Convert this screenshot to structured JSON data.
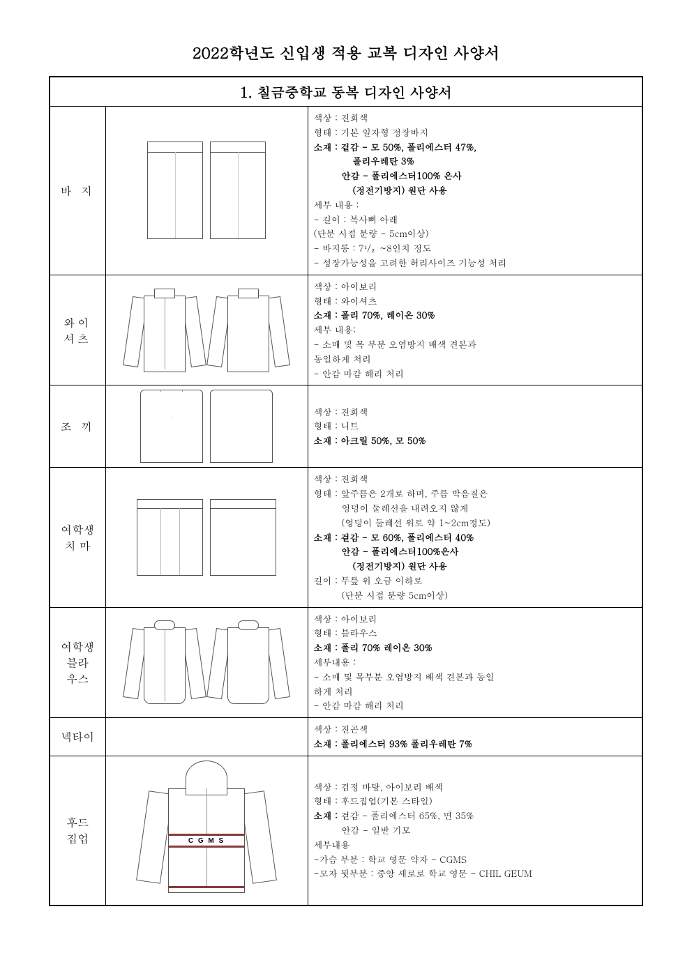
{
  "doc_title": "2022학년도 신입생 적용 교복 디자인 사양서",
  "section_title": "1. 칠금중학교 동복 디자인 사양서",
  "hoodie_logo": "C G M S",
  "rows": [
    {
      "label": "바 지",
      "specs": [
        {
          "text": "색상 : 진회색"
        },
        {
          "text": "형태 : 기본 일자형 정장바지"
        },
        {
          "text": "소재 : 겉감 - 모 50%, 폴리에스터 47%,",
          "bold": true
        },
        {
          "text": "폴리우레탄 3%",
          "bold": true,
          "indent": 2
        },
        {
          "text": "안감 - 폴리에스터100% 은사",
          "bold": true,
          "indent": 1
        },
        {
          "text": "(정전기방지) 원단 사용",
          "bold": true,
          "indent": 2
        },
        {
          "text": "세부 내용 :"
        },
        {
          "text": "- 길이 : 복사뼈 아래"
        },
        {
          "text": "  (단분 시접 분량 - 5cm이상)"
        },
        {
          "text": "- 바지통 : 7¹/₂~8인치 정도"
        },
        {
          "text": "- 성장가능성을 고려한 허리사이즈 기능성 처리"
        }
      ]
    },
    {
      "label": "와이\n셔츠",
      "specs": [
        {
          "text": "색상 : 아이보리"
        },
        {
          "text": "형태 : 와이셔츠"
        },
        {
          "text": "소재 : 폴리 70%,  레이온 30%",
          "bold": true
        },
        {
          "text": "세부 내용:"
        },
        {
          "text": "- 소매 및 목 부분 오염방지 배색 견본과"
        },
        {
          "text": "  동일하게 처리"
        },
        {
          "text": "- 안감 마감 해리 처리"
        }
      ]
    },
    {
      "label": "조 끼",
      "specs": [
        {
          "text": "색상 : 진회색"
        },
        {
          "text": "형태 : 니트"
        },
        {
          "text": "소재 : 아크릴 50%, 모 50%",
          "bold": true
        }
      ]
    },
    {
      "label": "여학생\n치 마",
      "specs": [
        {
          "text": "색상 : 진회색"
        },
        {
          "text": "형태 : 앞주름은 2개로 하며, 주름 박음질은"
        },
        {
          "text": "엉덩이 둘레선을 내려오지 않게",
          "indent": 1
        },
        {
          "text": "(엉덩이 둘레선 위로 약 1~2cm정도)",
          "indent": 1
        },
        {
          "text": "소재 : 겉감 - 모 60%, 폴리에스터 40%",
          "bold": true
        },
        {
          "text": "안감 - 폴리에스터100%은사",
          "bold": true,
          "indent": 1
        },
        {
          "text": "(정전기방지) 원단 사용",
          "bold": true,
          "indent": 2
        },
        {
          "text": "길이 : 무릎 위 오금 이하로"
        },
        {
          "text": "(단분 시접 분량  5cm이상)",
          "indent": 1
        }
      ]
    },
    {
      "label": "여학생\n블라\n우스",
      "specs": [
        {
          "text": "색상 : 아이보리"
        },
        {
          "text": "형태 : 블라우스"
        },
        {
          "text": "소재 : 폴리 70% 레이온 30%",
          "bold": true
        },
        {
          "text": "세부내용 :"
        },
        {
          "text": "- 소매 및 목부분 오염방지 배색 견본과 동일"
        },
        {
          "text": "  하게 처리"
        },
        {
          "text": "- 안감 마감 해리 처리"
        }
      ]
    },
    {
      "label": "넥타이",
      "specs": [
        {
          "text": "색상 : 진곤색"
        },
        {
          "text": "소재 : 폴리에스터 93% 폴리우레탄 7%",
          "bold": true
        }
      ]
    },
    {
      "label": "후드\n집업",
      "specs": [
        {
          "text": "색상 : 검정 바탕, 아이보리 배색"
        },
        {
          "text": "형태 : 후드집업(기본 스타일)"
        },
        {
          "text": "소재 : 겉감 - 폴리에스터 65%, 면 35%",
          "bold_prefix": "소재 :"
        },
        {
          "text": "안감 - 일반 기모",
          "indent": 1
        },
        {
          "text": "세부내용"
        },
        {
          "text": "-가슴 부분 : 학교 영문 약자 - CGMS"
        },
        {
          "text": "-모자 뒷부분 : 중앙 세로로 학교 영문 - CHIL GEUM"
        }
      ]
    }
  ]
}
